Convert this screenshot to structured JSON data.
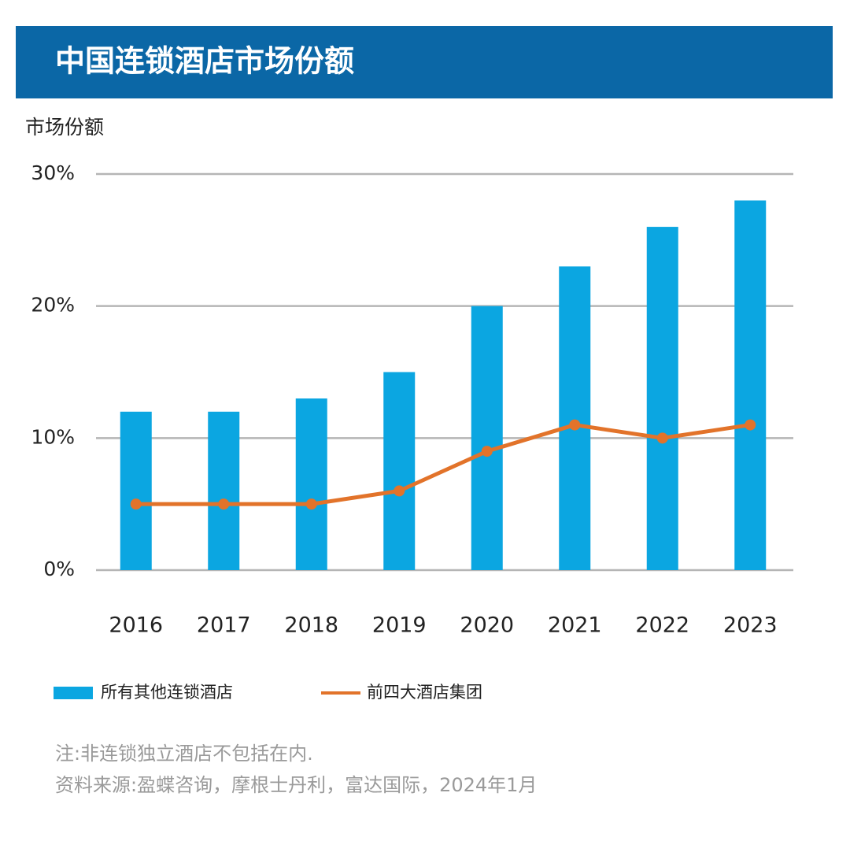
{
  "chart_data": {
    "type": "bar",
    "title": "中国连锁酒店市场份额",
    "y_label": "市场份额",
    "categories": [
      "2016",
      "2017",
      "2018",
      "2019",
      "2020",
      "2021",
      "2022",
      "2023"
    ],
    "series": [
      {
        "name": "所有其他连锁酒店",
        "type": "bar",
        "color": "#0ba6e1",
        "values": [
          12,
          12,
          13,
          15,
          20,
          23,
          26,
          28
        ]
      },
      {
        "name": "前四大酒店集团",
        "type": "line",
        "color": "#e2732a",
        "values": [
          5,
          5,
          5,
          6,
          9,
          11,
          10,
          11
        ]
      }
    ],
    "ylim": [
      0,
      30
    ],
    "yticks": [
      {
        "value": 0,
        "label": "0%"
      },
      {
        "value": 10,
        "label": "10%"
      },
      {
        "value": 20,
        "label": "20%"
      },
      {
        "value": 30,
        "label": "30%"
      }
    ],
    "grid": true,
    "notes": [
      "注:非连锁独立酒店不包括在内.",
      "资料来源:盈蝶咨询，摩根士丹利，富达国际，2024年1月"
    ]
  }
}
